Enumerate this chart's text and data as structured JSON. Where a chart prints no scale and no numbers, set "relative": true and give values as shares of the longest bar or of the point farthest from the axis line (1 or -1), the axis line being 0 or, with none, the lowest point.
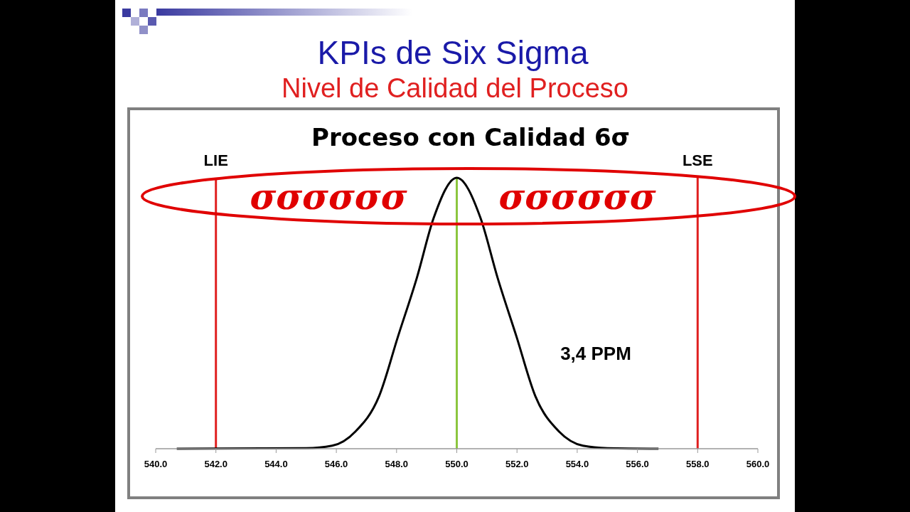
{
  "chart_data": {
    "type": "line",
    "title": "KPIs de Six Sigma",
    "subtitle": "Nivel de Calidad del Proceso",
    "relative": true,
    "annotations": [
      "Proceso con Calidad 6σ",
      "σσσσσσ",
      "σσσσσσ",
      "3,4 PPM"
    ],
    "series": [
      {
        "color": "#000000",
        "x": [
          540.7,
          545.0,
          545.86,
          546.63,
          547.42,
          548.05,
          548.68,
          549.23,
          550.0,
          550.79,
          551.35,
          551.98,
          552.61,
          553.4,
          554.19,
          555.0,
          556.7
        ],
        "values": [
          0,
          0.002,
          0.011,
          0.063,
          0.194,
          0.415,
          0.633,
          0.851,
          1,
          0.851,
          0.633,
          0.415,
          0.194,
          0.063,
          0.011,
          0.002,
          0
        ]
      }
    ],
    "xlim": [
      540,
      560
    ],
    "xticks": [
      {
        "value": 540,
        "label": "540.0"
      },
      {
        "value": 542,
        "label": "542.0"
      },
      {
        "value": 544,
        "label": "544.0"
      },
      {
        "value": 546,
        "label": "546.0"
      },
      {
        "value": 548,
        "label": "548.0"
      },
      {
        "value": 550,
        "label": "550.0"
      },
      {
        "value": 552,
        "label": "552.0"
      },
      {
        "value": 554,
        "label": "554.0"
      },
      {
        "value": 556,
        "label": "556.0"
      },
      {
        "value": 558,
        "label": "558.0"
      },
      {
        "value": 560,
        "label": "560.0"
      }
    ],
    "ref_lines": [
      {
        "axis": "x",
        "value": 542,
        "label": "LIE",
        "color": "#e02020"
      },
      {
        "axis": "x",
        "value": 558,
        "label": "LSE",
        "color": "#e02020"
      },
      {
        "axis": "x",
        "value": 550,
        "color": "#8cc63f"
      }
    ],
    "line_style": "solid",
    "marker": "none"
  }
}
